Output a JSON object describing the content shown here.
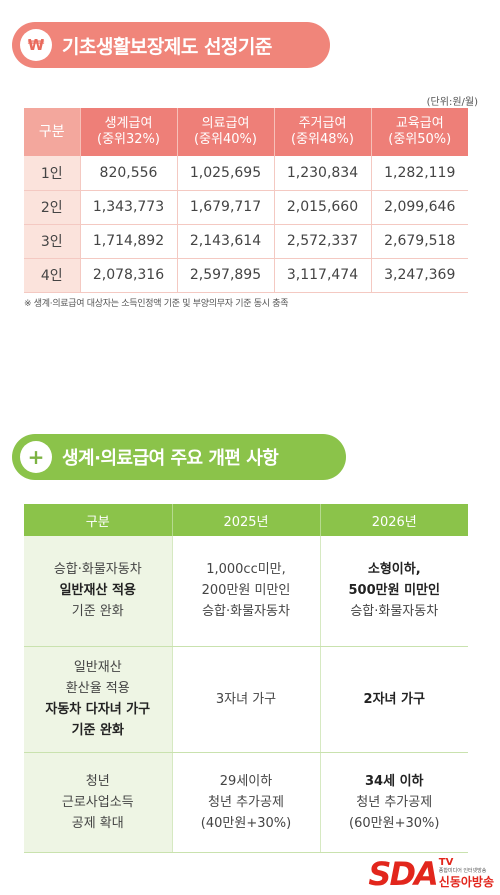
{
  "section1": {
    "icon": "won-sign-icon",
    "icon_glyph": "₩",
    "title": "기초생활보장제도 선정기준",
    "unit": "(단위:원/월)",
    "headers": [
      "구분",
      "생계급여\n(중위32%)",
      "의료급여\n(중위40%)",
      "주거급여\n(중위48%)",
      "교육급여\n(중위50%)"
    ],
    "rows": [
      {
        "label": "1인",
        "values": [
          "820,556",
          "1,025,695",
          "1,230,834",
          "1,282,119"
        ]
      },
      {
        "label": "2인",
        "values": [
          "1,343,773",
          "1,679,717",
          "2,015,660",
          "2,099,646"
        ]
      },
      {
        "label": "3인",
        "values": [
          "1,714,892",
          "2,143,614",
          "2,572,337",
          "2,679,518"
        ]
      },
      {
        "label": "4인",
        "values": [
          "2,078,316",
          "2,597,895",
          "3,117,474",
          "3,247,369"
        ]
      }
    ],
    "note": "※ 생계·의료급여 대상자는 소득인정액 기준 및 부양의무자 기준 동시 충족"
  },
  "section2": {
    "icon": "plus-circle-icon",
    "icon_glyph": "+",
    "title": "생계·의료급여 주요 개편 사항",
    "headers": [
      "구분",
      "2025년",
      "2026년"
    ],
    "rows": [
      {
        "label": [
          {
            "t": "승합·화물자동차",
            "b": false
          },
          {
            "t": "일반재산 적용",
            "b": true
          },
          {
            "t": "기준 완화",
            "b": false
          }
        ],
        "y2025": [
          {
            "t": "1,000cc미만,",
            "b": false
          },
          {
            "t": "200만원 미만인",
            "b": false
          },
          {
            "t": "승합·화물자동차",
            "b": false
          }
        ],
        "y2026": [
          {
            "t": "소형이하,",
            "b": true
          },
          {
            "t": "500만원 미만인",
            "b": true
          },
          {
            "t": "승합·화물자동차",
            "b": false
          }
        ]
      },
      {
        "label": [
          {
            "t": "일반재산",
            "b": false
          },
          {
            "t": "환산율 적용",
            "b": false
          },
          {
            "t": "자동차 다자녀 가구",
            "b": true
          },
          {
            "t": "기준 완화",
            "b": true
          }
        ],
        "y2025": [
          {
            "t": "3자녀 가구",
            "b": false
          }
        ],
        "y2026": [
          {
            "t": "2자녀 가구",
            "b": true
          }
        ]
      },
      {
        "label": [
          {
            "t": "청년",
            "b": false
          },
          {
            "t": "근로사업소득",
            "b": false
          },
          {
            "t": "공제 확대",
            "b": false
          }
        ],
        "y2025": [
          {
            "t": "29세이하",
            "b": false
          },
          {
            "t": "청년 추가공제",
            "b": false
          },
          {
            "t": "(40만원+30%)",
            "b": false
          }
        ],
        "y2026": [
          {
            "t": "34세 이하",
            "b": true
          },
          {
            "t": "청년 추가공제",
            "b": false
          },
          {
            "t": "(60만원+30%)",
            "b": false
          }
        ]
      }
    ]
  },
  "watermark": {
    "logo_text": "SDA",
    "tv": "TV",
    "tagline": "종합미디어 인터넷방송",
    "name": "신동아방송"
  },
  "colors": {
    "accent_red": "#f0857a",
    "accent_green": "#8bc34a",
    "logo_red": "#e2261c"
  }
}
